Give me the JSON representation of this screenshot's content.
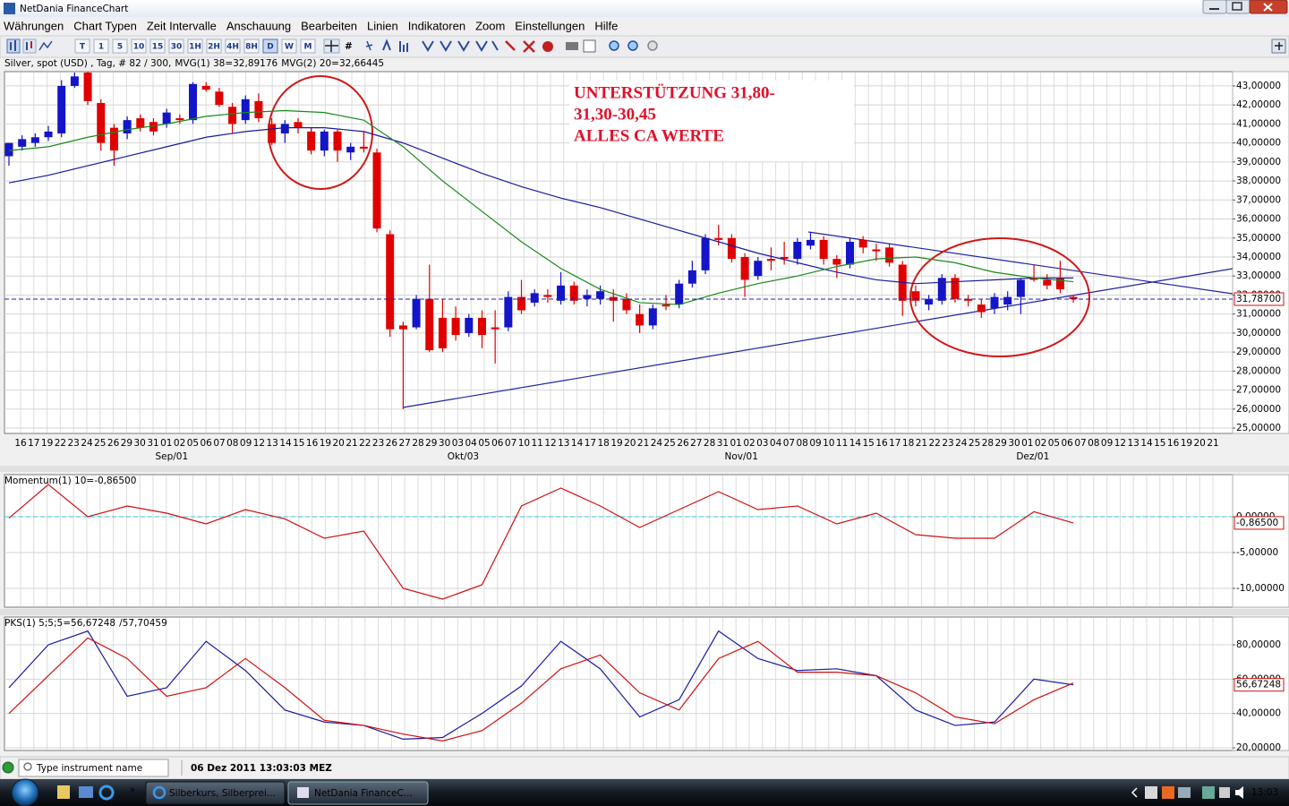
{
  "window": {
    "title": "NetDania FinanceChart"
  },
  "menu": [
    "Währungen",
    "Chart Typen",
    "Zeit Intervalle",
    "Anschauung",
    "Bearbeiten",
    "Linien",
    "Indikatoren",
    "Zoom",
    "Einstellungen",
    "Hilfe"
  ],
  "toolbar": {
    "intervals": [
      "T",
      "1",
      "5",
      "10",
      "15",
      "30",
      "1H",
      "2H",
      "4H",
      "8H",
      "D",
      "W",
      "M"
    ]
  },
  "chart_data": [
    {
      "type": "candlestick",
      "title": "Silver, spot (USD) , Tag, # 82 / 300,",
      "up_color": "#1414c8",
      "down_color": "#e00000",
      "ohlc": [
        [
          39.3,
          40.0,
          38.8,
          40.0
        ],
        [
          39.8,
          40.4,
          39.6,
          40.2
        ],
        [
          40.0,
          40.5,
          39.8,
          40.3
        ],
        [
          40.3,
          40.9,
          40.1,
          40.6
        ],
        [
          40.5,
          43.3,
          40.3,
          43.0
        ],
        [
          43.0,
          43.7,
          42.9,
          43.5
        ],
        [
          43.7,
          43.8,
          42.0,
          42.2
        ],
        [
          42.1,
          42.3,
          39.6,
          40.0
        ],
        [
          40.8,
          41.0,
          38.8,
          39.6
        ],
        [
          40.5,
          41.4,
          40.2,
          41.2
        ],
        [
          41.3,
          41.5,
          40.6,
          40.8
        ],
        [
          41.1,
          41.3,
          40.4,
          40.6
        ],
        [
          41.0,
          41.8,
          40.8,
          41.6
        ],
        [
          41.3,
          41.5,
          41.0,
          41.2
        ],
        [
          41.2,
          43.2,
          41.0,
          43.1
        ],
        [
          43.0,
          43.2,
          42.7,
          42.8
        ],
        [
          42.7,
          42.9,
          41.9,
          42.0
        ],
        [
          41.9,
          42.1,
          40.5,
          41.0
        ],
        [
          41.2,
          42.5,
          41.0,
          42.3
        ],
        [
          42.2,
          42.6,
          41.1,
          41.3
        ],
        [
          41.0,
          41.3,
          39.9,
          40.0
        ],
        [
          40.5,
          41.2,
          40.0,
          41.0
        ],
        [
          41.1,
          41.3,
          40.5,
          40.8
        ],
        [
          40.6,
          40.8,
          39.4,
          39.6
        ],
        [
          39.6,
          40.7,
          39.3,
          40.6
        ],
        [
          40.6,
          40.7,
          39.0,
          39.6
        ],
        [
          39.5,
          40.0,
          39.1,
          39.8
        ],
        [
          39.8,
          40.6,
          39.5,
          39.7
        ],
        [
          39.5,
          39.7,
          35.3,
          35.5
        ],
        [
          35.2,
          35.4,
          29.8,
          30.2
        ],
        [
          30.4,
          30.6,
          26.0,
          30.2
        ],
        [
          30.3,
          32.0,
          30.2,
          31.8
        ],
        [
          31.8,
          33.6,
          29.0,
          29.1
        ],
        [
          30.8,
          31.8,
          29.0,
          29.2
        ],
        [
          30.8,
          31.4,
          29.6,
          29.9
        ],
        [
          30.0,
          31.0,
          29.8,
          30.8
        ],
        [
          30.8,
          31.2,
          29.2,
          29.9
        ],
        [
          30.3,
          31.2,
          28.4,
          30.2
        ],
        [
          30.3,
          32.2,
          30.1,
          31.9
        ],
        [
          31.9,
          32.8,
          31.0,
          31.2
        ],
        [
          31.6,
          32.3,
          31.4,
          32.1
        ],
        [
          32.0,
          32.3,
          31.6,
          31.9
        ],
        [
          31.7,
          33.2,
          31.5,
          32.5
        ],
        [
          32.5,
          32.7,
          31.5,
          31.7
        ],
        [
          31.8,
          32.3,
          31.4,
          32.0
        ],
        [
          31.8,
          32.5,
          31.5,
          32.2
        ],
        [
          31.9,
          32.3,
          30.6,
          31.7
        ],
        [
          31.8,
          32.1,
          31.0,
          31.2
        ],
        [
          31.0,
          31.5,
          30.0,
          30.4
        ],
        [
          30.4,
          31.5,
          30.2,
          31.3
        ],
        [
          31.5,
          32.0,
          31.2,
          31.4
        ],
        [
          31.5,
          32.8,
          31.3,
          32.6
        ],
        [
          32.6,
          33.8,
          32.4,
          33.3
        ],
        [
          33.3,
          35.2,
          33.1,
          35.0
        ],
        [
          35.0,
          35.7,
          34.6,
          34.9
        ],
        [
          35.0,
          35.2,
          33.7,
          33.9
        ],
        [
          34.0,
          34.2,
          31.9,
          32.8
        ],
        [
          33.0,
          34.0,
          32.8,
          33.8
        ],
        [
          33.9,
          34.5,
          33.3,
          33.8
        ],
        [
          34.0,
          34.8,
          33.6,
          33.9
        ],
        [
          33.9,
          35.0,
          33.6,
          34.8
        ],
        [
          34.6,
          35.3,
          34.4,
          34.9
        ],
        [
          34.9,
          35.1,
          33.6,
          33.9
        ],
        [
          33.9,
          34.1,
          32.9,
          33.6
        ],
        [
          33.6,
          35.0,
          33.4,
          34.8
        ],
        [
          34.9,
          35.1,
          34.2,
          34.5
        ],
        [
          34.4,
          34.7,
          33.8,
          34.3
        ],
        [
          34.5,
          34.7,
          33.5,
          33.7
        ],
        [
          33.6,
          33.8,
          30.9,
          31.7
        ],
        [
          32.2,
          32.5,
          31.4,
          31.7
        ],
        [
          31.5,
          32.0,
          31.2,
          31.8
        ],
        [
          31.7,
          33.1,
          31.5,
          32.9
        ],
        [
          32.9,
          33.1,
          31.6,
          31.8
        ],
        [
          31.8,
          32.0,
          31.4,
          31.7
        ],
        [
          31.5,
          31.8,
          30.8,
          31.1
        ],
        [
          31.3,
          32.1,
          31.0,
          31.9
        ],
        [
          31.5,
          32.2,
          31.2,
          31.9
        ],
        [
          31.9,
          32.9,
          31.0,
          32.8
        ],
        [
          32.9,
          33.6,
          32.7,
          32.8
        ],
        [
          32.8,
          33.1,
          32.3,
          32.5
        ],
        [
          32.9,
          33.8,
          32.1,
          32.3
        ],
        [
          31.9,
          32.0,
          31.6,
          31.787
        ]
      ],
      "series": [
        {
          "name": "MVG(1) 38=32,89176",
          "color": "#1a1a9a",
          "x": [
            0,
            3,
            6,
            9,
            12,
            15,
            18,
            21,
            24,
            27,
            30,
            33,
            36,
            39,
            42,
            45,
            48,
            51,
            54,
            57,
            60,
            63,
            66,
            69,
            72,
            75,
            78,
            81
          ],
          "values": [
            37.9,
            38.3,
            38.8,
            39.3,
            39.8,
            40.3,
            40.6,
            40.8,
            40.8,
            40.6,
            40.0,
            39.2,
            38.4,
            37.7,
            37.1,
            36.6,
            36.0,
            35.4,
            34.8,
            34.2,
            33.7,
            33.2,
            32.8,
            32.6,
            32.7,
            32.8,
            32.9,
            32.9
          ]
        },
        {
          "name": "MVG(2) 20=32,66445",
          "color": "#1a8a1a",
          "x": [
            0,
            3,
            6,
            9,
            12,
            15,
            18,
            21,
            24,
            27,
            30,
            33,
            36,
            39,
            42,
            45,
            48,
            51,
            54,
            57,
            60,
            63,
            66,
            69,
            72,
            75,
            78,
            81
          ],
          "values": [
            39.6,
            39.8,
            40.3,
            40.7,
            41.0,
            41.4,
            41.6,
            41.7,
            41.6,
            41.2,
            39.8,
            38.0,
            36.4,
            34.8,
            33.4,
            32.3,
            31.6,
            31.5,
            32.1,
            32.6,
            33.0,
            33.5,
            33.9,
            34.0,
            33.7,
            33.2,
            32.9,
            32.7
          ]
        }
      ],
      "last": 31.787,
      "last_label": "31,78700",
      "ylim": [
        24.72,
        43.75
      ],
      "yticks": [
        {
          "value": 25,
          "label": "25,00000"
        },
        {
          "value": 26,
          "label": "26,00000"
        },
        {
          "value": 27,
          "label": "27,00000"
        },
        {
          "value": 28,
          "label": "28,00000"
        },
        {
          "value": 29,
          "label": "29,00000"
        },
        {
          "value": 30,
          "label": "30,00000"
        },
        {
          "value": 31,
          "label": "31,00000"
        },
        {
          "value": 32,
          "label": "32,00000"
        },
        {
          "value": 33,
          "label": "33,00000"
        },
        {
          "value": 34,
          "label": "34,00000"
        },
        {
          "value": 35,
          "label": "35,00000"
        },
        {
          "value": 36,
          "label": "36,00000"
        },
        {
          "value": 37,
          "label": "37,00000"
        },
        {
          "value": 38,
          "label": "38,00000"
        },
        {
          "value": 39,
          "label": "39,00000"
        },
        {
          "value": 40,
          "label": "40,00000"
        },
        {
          "value": 41,
          "label": "41,00000"
        },
        {
          "value": 42,
          "label": "42,00000"
        },
        {
          "value": 43,
          "label": "43,00000"
        }
      ],
      "x_labels": [
        "16",
        "17",
        "19",
        "22",
        "23",
        "24",
        "25",
        "26",
        "29",
        "30",
        "31",
        "01",
        "02",
        "05",
        "06",
        "07",
        "08",
        "09",
        "12",
        "13",
        "14",
        "15",
        "16",
        "19",
        "20",
        "21",
        "22",
        "23",
        "26",
        "27",
        "28",
        "29",
        "30",
        "03",
        "04",
        "05",
        "06",
        "07",
        "10",
        "11",
        "12",
        "13",
        "14",
        "17",
        "18",
        "19",
        "20",
        "21",
        "24",
        "25",
        "26",
        "27",
        "28",
        "31",
        "01",
        "02",
        "03",
        "04",
        "07",
        "08",
        "09",
        "10",
        "11",
        "14",
        "15",
        "16",
        "17",
        "18",
        "21",
        "22",
        "23",
        "24",
        "25",
        "28",
        "29",
        "30",
        "01",
        "02",
        "05",
        "06",
        "07",
        "08",
        "09",
        "12",
        "13",
        "14",
        "15",
        "16",
        "19",
        "20",
        "21"
      ],
      "month_labels": [
        null,
        null,
        null,
        null,
        null,
        null,
        null,
        null,
        null,
        null,
        null,
        "Sep/01",
        null,
        null,
        null,
        null,
        null,
        null,
        null,
        null,
        null,
        null,
        null,
        null,
        null,
        null,
        null,
        null,
        null,
        null,
        null,
        null,
        null,
        "Okt/03",
        null,
        null,
        null,
        null,
        null,
        null,
        null,
        null,
        null,
        null,
        null,
        null,
        null,
        null,
        null,
        null,
        null,
        null,
        null,
        null,
        "Nov/01",
        null,
        null,
        null,
        null,
        null,
        null,
        null,
        null,
        null,
        null,
        null,
        null,
        null,
        null,
        null,
        null,
        null,
        null,
        null,
        null,
        null,
        "Dez/01",
        null,
        null,
        null,
        null,
        null,
        null,
        null,
        null,
        null,
        null,
        null,
        null,
        null,
        null
      ],
      "annotations": [
        "UNTERSTÜTZUNG 31,80-",
        "31,30-30,45",
        "ALLES CA WERTE"
      ],
      "grid": true
    },
    {
      "type": "line",
      "title": "Momentum(1) 10=-0,86500",
      "series": [
        {
          "color": "#d01010",
          "x": [
            0,
            3,
            6,
            9,
            12,
            15,
            18,
            21,
            24,
            27,
            30,
            33,
            36,
            39,
            42,
            45,
            48,
            51,
            54,
            57,
            60,
            63,
            66,
            69,
            72,
            75,
            78,
            81
          ],
          "values": [
            -0.2,
            4.5,
            0,
            1.5,
            0.5,
            -1.0,
            1.0,
            -0.3,
            -3.0,
            -2.0,
            -10.0,
            -11.5,
            -9.5,
            1.5,
            4.0,
            1.5,
            -1.5,
            1.0,
            3.5,
            1.0,
            1.5,
            -1.0,
            0.5,
            -2.5,
            -3.0,
            -3.0,
            0.7,
            -0.865
          ]
        }
      ],
      "reference_line": 0,
      "last": -0.865,
      "last_label": "-0,86500",
      "ylim": [
        -12.625,
        5.875
      ],
      "yticks": [
        {
          "value": 0,
          "label": "0,00000"
        },
        {
          "value": -5,
          "label": "-5,00000"
        },
        {
          "value": -10,
          "label": "-10,00000"
        }
      ],
      "grid": true
    },
    {
      "type": "line",
      "series": [
        {
          "name": "PKS(1) 5;5;5=56,67248",
          "color": "#1a1aa0",
          "x": [
            0,
            3,
            6,
            9,
            12,
            15,
            18,
            21,
            24,
            27,
            30,
            33,
            36,
            39,
            42,
            45,
            48,
            51,
            54,
            57,
            60,
            63,
            66,
            69,
            72,
            75,
            78,
            81
          ],
          "values": [
            55,
            80,
            88,
            50,
            55,
            82,
            65,
            42,
            35,
            33,
            25,
            26,
            40,
            56,
            82,
            66,
            38,
            48,
            88,
            72,
            65,
            66,
            62,
            42,
            33,
            35,
            60,
            56.67248
          ]
        },
        {
          "name": "/57,70459",
          "color": "#d01010",
          "x": [
            0,
            3,
            6,
            9,
            12,
            15,
            18,
            21,
            24,
            27,
            30,
            33,
            36,
            39,
            42,
            45,
            48,
            51,
            54,
            57,
            60,
            63,
            66,
            69,
            72,
            75,
            78,
            81
          ],
          "values": [
            40,
            62,
            84,
            72,
            50,
            55,
            72,
            55,
            36,
            33,
            28,
            24,
            30,
            46,
            66,
            74,
            52,
            42,
            72,
            82,
            64,
            64,
            62,
            52,
            38,
            34,
            48,
            57.70459
          ]
        }
      ],
      "last": 56.67248,
      "last_label": "56,67248",
      "ylim": [
        18.43,
        96.17
      ],
      "yticks": [
        {
          "value": 20,
          "label": "20,00000"
        },
        {
          "value": 40,
          "label": "40,00000"
        },
        {
          "value": 60,
          "label": "60,00000"
        },
        {
          "value": 80,
          "label": "80,00000"
        }
      ],
      "grid": true
    }
  ],
  "status": {
    "search_placeholder": "Type instrument name",
    "timestamp": "06 Dez 2011 13:03:03 MEZ"
  },
  "taskbar": {
    "tasks": [
      "Silberkurs, Silberprei...",
      "NetDania FinanceC..."
    ],
    "clock": "13:03"
  }
}
